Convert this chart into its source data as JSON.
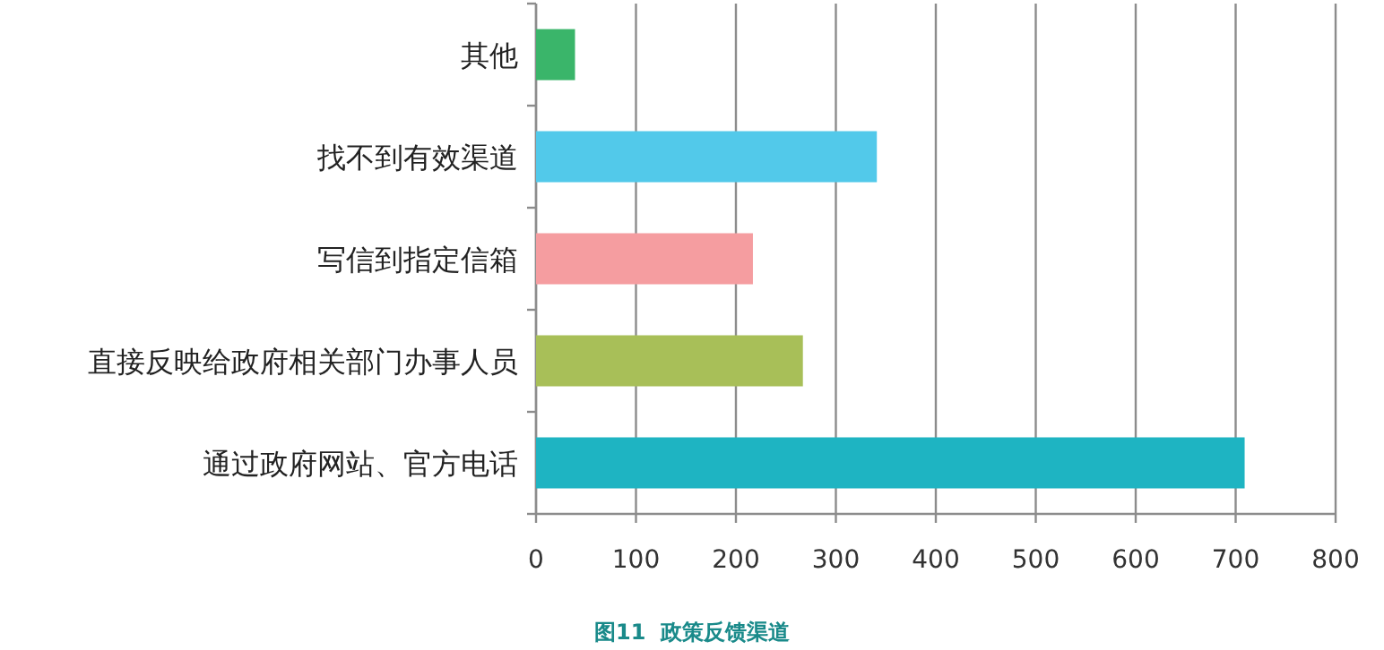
{
  "chart_data": {
    "type": "bar",
    "orientation": "horizontal",
    "title": "图11  政策反馈渠道",
    "categories": [
      "其他",
      "找不到有效渠道",
      "写信到指定信箱",
      "直接反映给政府相关部门办事人员",
      "通过政府网站、官方电话"
    ],
    "values": [
      39,
      341,
      217,
      267,
      709
    ],
    "colors": [
      "#3ab56a",
      "#52c9ea",
      "#f59da0",
      "#a8bf58",
      "#1eb4c2"
    ],
    "xlim": [
      0,
      800
    ],
    "xticks": [
      0,
      100,
      200,
      300,
      400,
      500,
      600,
      700,
      800
    ],
    "grid": "x"
  }
}
